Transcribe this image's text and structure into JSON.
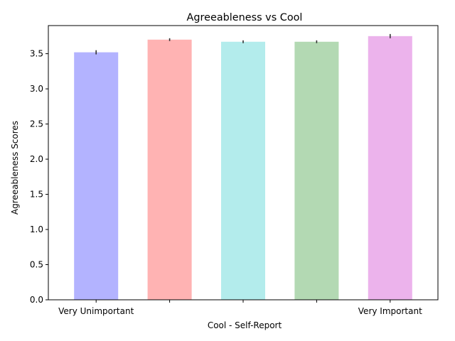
{
  "chart_data": {
    "type": "bar",
    "title": "Agreeableness vs Cool",
    "xlabel": "Cool - Self-Report",
    "ylabel": "Agreeableness Scores",
    "categories": [
      "Very Unimportant",
      "",
      "",
      "",
      "Very Important"
    ],
    "values": [
      3.52,
      3.7,
      3.67,
      3.67,
      3.75
    ],
    "errors": [
      0.03,
      0.02,
      0.02,
      0.02,
      0.03
    ],
    "colors": [
      "#b3b3ff",
      "#ffb3b3",
      "#b3ecec",
      "#b3d9b3",
      "#ecb3ec"
    ],
    "ylim": [
      0,
      3.9
    ],
    "yticks": [
      0.0,
      0.5,
      1.0,
      1.5,
      2.0,
      2.5,
      3.0,
      3.5
    ],
    "ytick_labels": [
      "0.0",
      "0.5",
      "1.0",
      "1.5",
      "2.0",
      "2.5",
      "3.0",
      "3.5"
    ],
    "grid": false,
    "legend": "none"
  }
}
